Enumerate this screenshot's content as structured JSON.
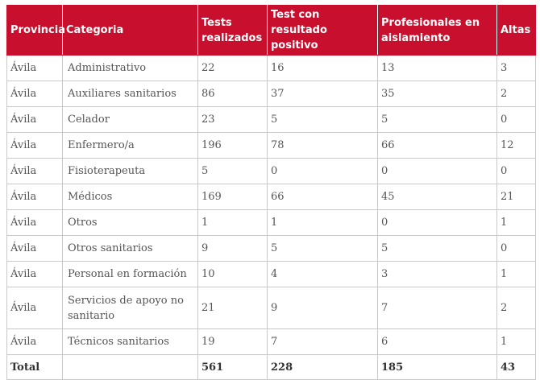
{
  "table": {
    "headers": [
      "Provincia",
      "Categoria",
      "Tests realizados",
      "Test con resultado positivo",
      "Profesionales en aislamiento",
      "Altas"
    ],
    "rows": [
      [
        "Ávila",
        "Administrativo",
        "22",
        "16",
        "13",
        "3"
      ],
      [
        "Ávila",
        "Auxiliares sanitarios",
        "86",
        "37",
        "35",
        "2"
      ],
      [
        "Ávila",
        "Celador",
        "23",
        "5",
        "5",
        "0"
      ],
      [
        "Ávila",
        "Enfermero/a",
        "196",
        "78",
        "66",
        "12"
      ],
      [
        "Ávila",
        "Fisioterapeuta",
        "5",
        "0",
        "0",
        "0"
      ],
      [
        "Ávila",
        "Médicos",
        "169",
        "66",
        "45",
        "21"
      ],
      [
        "Ávila",
        "Otros",
        "1",
        "1",
        "0",
        "1"
      ],
      [
        "Ávila",
        "Otros sanitarios",
        "9",
        "5",
        "5",
        "0"
      ],
      [
        "Ávila",
        "Personal en formación",
        "10",
        "4",
        "3",
        "1"
      ],
      [
        "Ávila",
        "Servicios de apoyo no sanitario",
        "21",
        "9",
        "7",
        "2"
      ],
      [
        "Ávila",
        "Técnicos sanitarios",
        "19",
        "7",
        "6",
        "1"
      ]
    ],
    "total": [
      "Total",
      "",
      "561",
      "228",
      "185",
      "43"
    ]
  },
  "colors": {
    "header_bg": "#c8102e",
    "header_text": "#ffffff",
    "border": "#c9c9c9",
    "body_text": "#555555"
  }
}
